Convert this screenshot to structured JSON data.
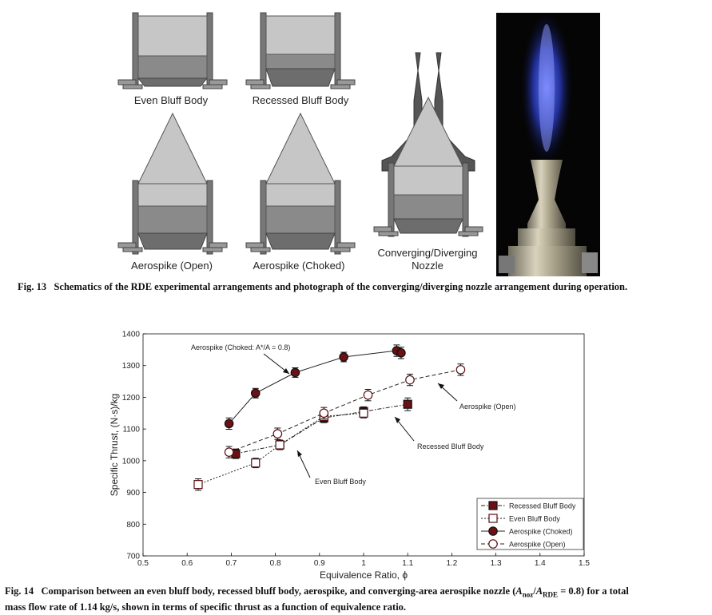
{
  "fig13": {
    "labels": {
      "even": "Even Bluff Body",
      "recessed": "Recessed Bluff Body",
      "aero_open": "Aerospike (Open)",
      "aero_choked": "Aerospike (Choked)",
      "cd_line1": "Converging/Diverging",
      "cd_line2": "Nozzle"
    },
    "caption_num": "Fig. 13",
    "caption": "Schematics of the RDE experimental arrangements and photograph of the converging/diverging nozzle arrangement during operation."
  },
  "fig14": {
    "caption_num": "Fig. 14",
    "caption_a": "Comparison between an even bluff body, recessed bluff body, aerospike, and converging-area aerospike nozzle (",
    "caption_a_sym1": "A",
    "caption_a_sub1": "noz",
    "caption_a_slash": "/",
    "caption_a_sym2": "A",
    "caption_a_sub2": "RDE",
    "caption_a_eq": " = 0.8) for a total",
    "caption_b": "mass flow rate of 1.14 kg/s, shown in terms of specific thrust as a function of equivalence ratio."
  },
  "chart_data": {
    "type": "scatter",
    "xlabel": "Equivalence Ratio, ϕ",
    "ylabel": "Specific Thrust, (N·s)/kg",
    "xlim": [
      0.5,
      1.5
    ],
    "ylim": [
      700,
      1400
    ],
    "xticks": [
      "0.5",
      "0.6",
      "0.7",
      "0.8",
      "0.9",
      "1",
      "1.1",
      "1.2",
      "1.3",
      "1.4",
      "1.5"
    ],
    "yticks": [
      "700",
      "800",
      "900",
      "1000",
      "1100",
      "1200",
      "1300",
      "1400"
    ],
    "legend_position": "bottom-right",
    "annotations": {
      "choked": "Aerospike (Choked: A*/A = 0.8)",
      "open": "Aerospike (Open)",
      "recessed": "Recessed Bluff Body",
      "even": "Even Bluff Body"
    },
    "series": [
      {
        "name": "Recessed Bluff Body",
        "marker": "square-filled",
        "line": "dashdot",
        "x": [
          0.71,
          0.81,
          0.91,
          1.0,
          1.1
        ],
        "y": [
          1022,
          1050,
          1135,
          1155,
          1178
        ],
        "err": [
          15,
          15,
          15,
          15,
          20
        ]
      },
      {
        "name": "Even Bluff Body",
        "marker": "square-open",
        "line": "dotted",
        "x": [
          0.625,
          0.755,
          0.81,
          0.91,
          1.0
        ],
        "y": [
          925,
          993,
          1050,
          1140,
          1150
        ],
        "err": [
          18,
          15,
          15,
          15,
          15
        ]
      },
      {
        "name": "Aerospike (Choked)",
        "marker": "circle-filled",
        "line": "solid",
        "x": [
          0.695,
          0.755,
          0.845,
          0.955,
          1.075,
          1.085
        ],
        "y": [
          1117,
          1213,
          1278,
          1327,
          1347,
          1340
        ],
        "err": [
          18,
          15,
          15,
          15,
          18,
          18
        ]
      },
      {
        "name": "Aerospike (Open)",
        "marker": "circle-open",
        "line": "dashed",
        "x": [
          0.695,
          0.805,
          0.91,
          1.01,
          1.105,
          1.22
        ],
        "y": [
          1027,
          1085,
          1150,
          1207,
          1255,
          1287
        ],
        "err": [
          18,
          18,
          18,
          18,
          18,
          18
        ]
      }
    ],
    "colors": {
      "marker_fill": "#6b1014",
      "marker_edge": "#5a0e12",
      "open_fill": "#ffffff",
      "line": "#222222"
    }
  }
}
